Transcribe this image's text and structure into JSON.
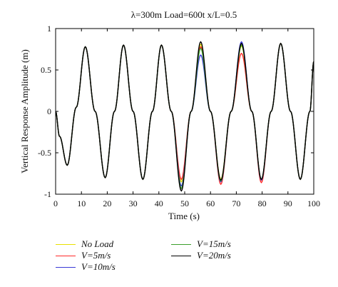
{
  "chart_data": {
    "type": "line",
    "title": "λ=300m Load=600t x/L=0.5",
    "xlabel": "Time (s)",
    "ylabel": "Vertical Response Amplitude (m)",
    "xlim": [
      0,
      100
    ],
    "ylim": [
      -1,
      1
    ],
    "xticks": [
      "0",
      "10",
      "20",
      "30",
      "40",
      "50",
      "60",
      "70",
      "80",
      "90",
      "100"
    ],
    "yticks": [
      "1",
      "0.5",
      "0",
      "-0.5",
      "-1"
    ],
    "grid": false,
    "legend_position": "bottom",
    "base_wave": {
      "x": [
        0,
        1.5,
        4.5,
        8,
        11.5,
        15.3,
        19.2,
        22.8,
        26.3,
        30,
        33.8,
        37.5,
        41,
        44.8,
        48.7,
        52.5,
        56.2,
        60,
        64,
        68,
        72,
        76,
        79.7,
        83.5,
        87.2,
        91,
        94.8,
        98.5,
        100
      ],
      "y": [
        0,
        -0.3,
        -0.65,
        0.05,
        0.78,
        0.0,
        -0.8,
        0.0,
        0.8,
        0.0,
        -0.82,
        0.0,
        0.8,
        0.0,
        -0.85,
        0.0,
        0.8,
        0.0,
        -0.82,
        0.0,
        0.8,
        0.0,
        -0.82,
        0.0,
        0.82,
        0.0,
        -0.82,
        0.0,
        0.6
      ]
    },
    "series": [
      {
        "name": "No Load",
        "color": "#e8e000",
        "deviations": {
          "x": [
            48.7,
            56.2,
            64,
            72,
            79.7
          ],
          "y": [
            -0.85,
            0.81,
            -0.82,
            0.79,
            -0.83
          ]
        }
      },
      {
        "name": "V=5m/s",
        "color": "#ff2a2a",
        "deviations": {
          "x": [
            48.7,
            56.2,
            64,
            72,
            79.7
          ],
          "y": [
            -0.82,
            0.78,
            -0.88,
            0.7,
            -0.86
          ]
        }
      },
      {
        "name": "V=10m/s",
        "color": "#3a3ad6",
        "deviations": {
          "x": [
            48.7,
            56.2,
            64,
            72,
            79.7
          ],
          "y": [
            -0.9,
            0.68,
            -0.85,
            0.84,
            -0.83
          ]
        }
      },
      {
        "name": "V=15m/s",
        "color": "#3ca02c",
        "deviations": {
          "x": [
            48.7,
            56.2,
            64,
            72,
            79.7
          ],
          "y": [
            -0.93,
            0.76,
            -0.84,
            0.8,
            -0.82
          ]
        }
      },
      {
        "name": "V=20m/s",
        "color": "#000000",
        "deviations": {
          "x": [
            48.7,
            56.2,
            64,
            72,
            79.7
          ],
          "y": [
            -0.96,
            0.84,
            -0.83,
            0.82,
            -0.82
          ]
        }
      }
    ]
  }
}
